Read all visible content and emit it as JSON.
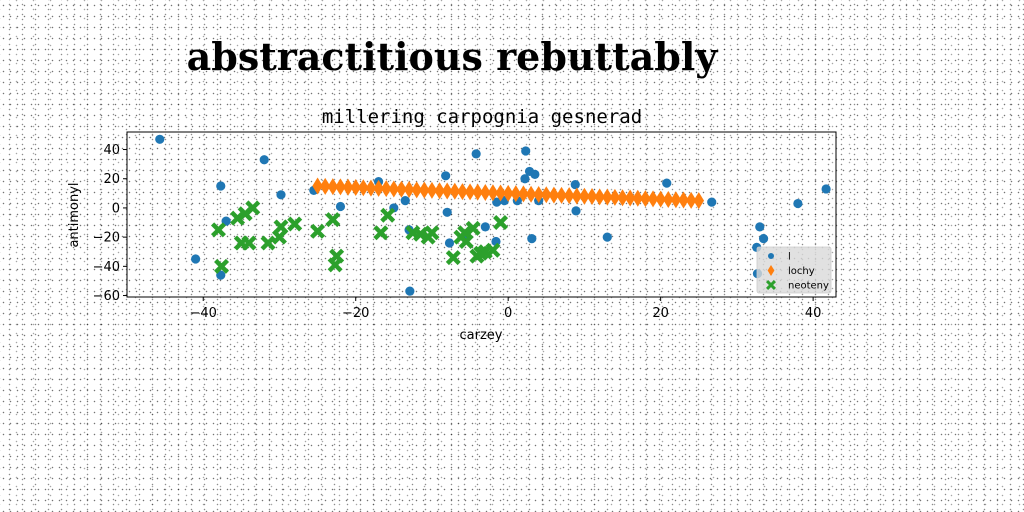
{
  "chart_data": {
    "type": "scatter",
    "suptitle": "abstractitious rebuttably",
    "title": "millering carpognia gesnerad",
    "xlabel": "carzey",
    "ylabel": "antimonyl",
    "xlim": [
      -50,
      43
    ],
    "ylim": [
      -61,
      52
    ],
    "xticks": [
      -40,
      -20,
      0,
      20,
      40
    ],
    "yticks": [
      -60,
      -40,
      -20,
      0,
      20,
      40
    ],
    "grid": false,
    "legend_position": "lower right",
    "series": [
      {
        "name": "l",
        "marker": "circle",
        "color": "#1f77b4",
        "points": [
          [
            -45.7,
            47
          ],
          [
            -41,
            -35
          ],
          [
            -37.7,
            15
          ],
          [
            -37.7,
            -46
          ],
          [
            -37,
            -9
          ],
          [
            -32,
            33
          ],
          [
            -29.8,
            9
          ],
          [
            -25.5,
            12
          ],
          [
            -22,
            1
          ],
          [
            -17,
            18
          ],
          [
            -15,
            0
          ],
          [
            -13.5,
            5
          ],
          [
            -13,
            -15
          ],
          [
            -12.9,
            -57
          ],
          [
            -8.2,
            22
          ],
          [
            -8,
            -3
          ],
          [
            -7.7,
            -24
          ],
          [
            -5.5,
            -19
          ],
          [
            -4.2,
            37
          ],
          [
            -3,
            -13
          ],
          [
            -1.6,
            -23
          ],
          [
            -1.5,
            4
          ],
          [
            -0.5,
            5
          ],
          [
            1.2,
            5
          ],
          [
            2.2,
            20
          ],
          [
            2.3,
            39
          ],
          [
            2.8,
            25
          ],
          [
            3.1,
            -21
          ],
          [
            3.5,
            23
          ],
          [
            4,
            5
          ],
          [
            8.8,
            16
          ],
          [
            8.9,
            -2
          ],
          [
            13,
            -20
          ],
          [
            20.8,
            17
          ],
          [
            26.7,
            4
          ],
          [
            32.6,
            -27
          ],
          [
            32.7,
            -45
          ],
          [
            33,
            -13
          ],
          [
            33.5,
            -21
          ],
          [
            38,
            3
          ],
          [
            41.7,
            13
          ]
        ]
      },
      {
        "name": "lochy",
        "marker": "diamond",
        "color": "#ff7f0e",
        "points": [
          [
            -25.0,
            15.0
          ],
          [
            -24.0,
            14.8
          ],
          [
            -23.0,
            14.6
          ],
          [
            -22.0,
            14.4
          ],
          [
            -21.0,
            14.2
          ],
          [
            -20.0,
            14.0
          ],
          [
            -19.0,
            13.8
          ],
          [
            -18.0,
            13.6
          ],
          [
            -17.0,
            13.4
          ],
          [
            -16.0,
            13.2
          ],
          [
            -15.0,
            13.0
          ],
          [
            -14.0,
            12.8
          ],
          [
            -13.0,
            12.6
          ],
          [
            -12.0,
            12.4
          ],
          [
            -11.0,
            12.2
          ],
          [
            -10.0,
            12.0
          ],
          [
            -9.0,
            11.8
          ],
          [
            -8.0,
            11.6
          ],
          [
            -7.0,
            11.4
          ],
          [
            -6.0,
            11.2
          ],
          [
            -5.0,
            11.0
          ],
          [
            -4.0,
            10.8
          ],
          [
            -3.0,
            10.6
          ],
          [
            -2.0,
            10.4
          ],
          [
            -1.0,
            10.2
          ],
          [
            0.0,
            10.0
          ],
          [
            1.0,
            9.8
          ],
          [
            2.0,
            9.6
          ],
          [
            3.0,
            9.4
          ],
          [
            4.0,
            9.2
          ],
          [
            5.0,
            9.0
          ],
          [
            6.0,
            8.8
          ],
          [
            7.0,
            8.6
          ],
          [
            8.0,
            8.4
          ],
          [
            9.0,
            8.2
          ],
          [
            10.0,
            8.0
          ],
          [
            11.0,
            7.8
          ],
          [
            12.0,
            7.6
          ],
          [
            13.0,
            7.4
          ],
          [
            14.0,
            7.2
          ],
          [
            15.0,
            7.0
          ],
          [
            16.0,
            6.8
          ],
          [
            17.0,
            6.6
          ],
          [
            18.0,
            6.4
          ],
          [
            19.0,
            6.2
          ],
          [
            20.0,
            6.0
          ],
          [
            21.0,
            5.8
          ],
          [
            22.0,
            5.6
          ],
          [
            23.0,
            5.4
          ],
          [
            24.0,
            5.2
          ],
          [
            25.0,
            5.0
          ]
        ]
      },
      {
        "name": "neoteny",
        "marker": "x",
        "color": "#2ca02c",
        "points": [
          [
            -38,
            -15
          ],
          [
            -37.6,
            -40
          ],
          [
            -35.5,
            -7
          ],
          [
            -35,
            -24
          ],
          [
            -34,
            -24
          ],
          [
            -34.5,
            -4
          ],
          [
            -33.5,
            0
          ],
          [
            -31.5,
            -24
          ],
          [
            -30,
            -20
          ],
          [
            -29.8,
            -13
          ],
          [
            -28,
            -11
          ],
          [
            -25,
            -16
          ],
          [
            -23,
            -8
          ],
          [
            -22.7,
            -39
          ],
          [
            -22.5,
            -33
          ],
          [
            -16.7,
            -17
          ],
          [
            -15.8,
            -5
          ],
          [
            -12.5,
            -17
          ],
          [
            -11.5,
            -18
          ],
          [
            -10.5,
            -20
          ],
          [
            -10,
            -17
          ],
          [
            -7.2,
            -34
          ],
          [
            -6.2,
            -20
          ],
          [
            -5.7,
            -17
          ],
          [
            -5.5,
            -23
          ],
          [
            -4.6,
            -14
          ],
          [
            -4.1,
            -33
          ],
          [
            -3.6,
            -31
          ],
          [
            -3,
            -30
          ],
          [
            -2,
            -29
          ],
          [
            -1,
            -10
          ]
        ]
      }
    ]
  }
}
